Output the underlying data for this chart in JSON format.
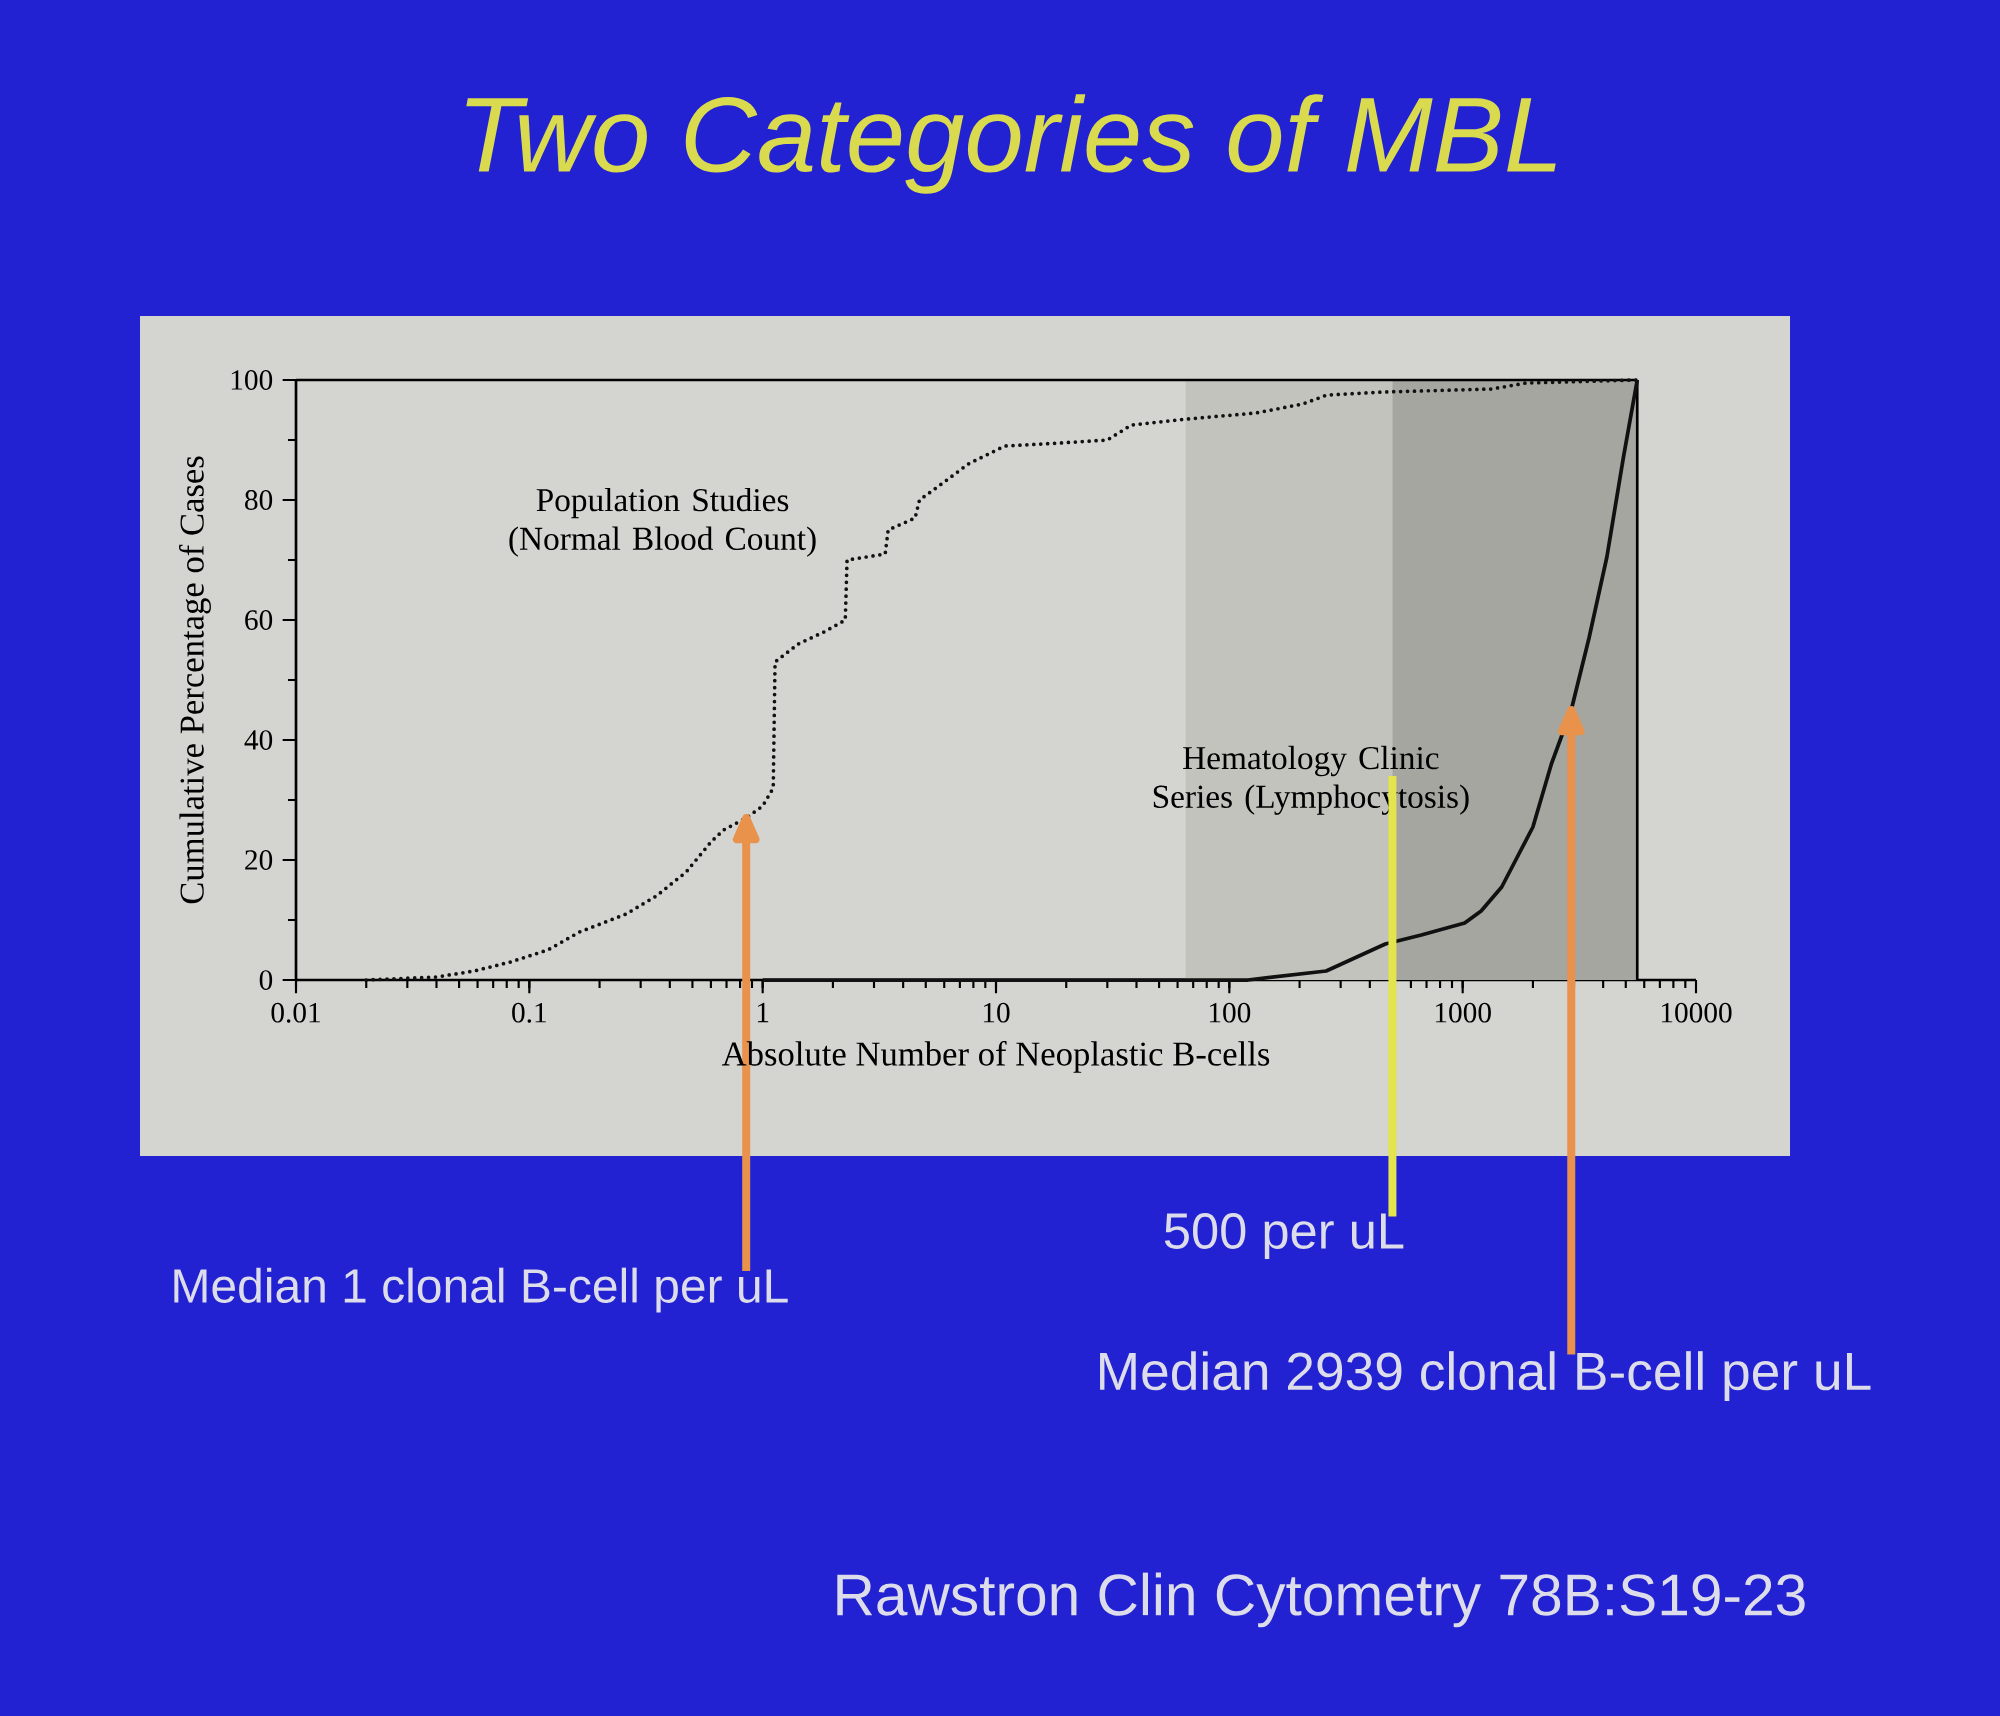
{
  "chart_data": {
    "type": "line",
    "title": "Two Categories of MBL",
    "xlabel": "Absolute Number of Neoplastic B-cells",
    "ylabel": "Cumulative Percentage of Cases",
    "log": "x",
    "xlim": [
      0.01,
      10000
    ],
    "xticks": [
      0.01,
      0.1,
      1,
      10,
      100,
      1000,
      10000
    ],
    "ylim": [
      0,
      100
    ],
    "yticks": [
      0,
      {
        "value": 10,
        "label": null
      },
      20,
      {
        "value": 30,
        "label": null
      },
      40,
      {
        "value": 50,
        "label": null
      },
      60,
      {
        "value": 70,
        "label": null
      },
      80,
      {
        "value": 90,
        "label": null
      },
      100
    ],
    "series": [
      {
        "name": "Population Studies (Normal Blood Count)",
        "color": "#111111",
        "line_style": "dotted",
        "x": [
          0.02,
          0.04,
          0.058,
          0.083,
          0.12,
          0.164,
          0.26,
          0.35,
          0.47,
          0.6,
          0.68,
          0.85,
          1,
          1.11,
          1.13,
          1.42,
          1.83,
          2.26,
          2.3,
          3.35,
          3.45,
          4.5,
          4.7,
          6,
          7.6,
          10.9,
          18.8,
          30,
          38,
          66,
          130,
          206,
          262,
          455,
          1330,
          1870,
          5600
        ],
        "values": [
          0,
          0.5,
          1.5,
          3,
          5,
          8,
          11,
          14,
          18,
          23,
          25,
          27,
          29,
          32,
          53,
          56,
          58,
          60,
          70,
          71,
          75,
          77,
          80,
          83,
          86,
          89,
          89.5,
          90,
          92.5,
          93.5,
          94.5,
          96,
          97.5,
          98,
          98.5,
          99.5,
          100
        ]
      },
      {
        "name": "Hematology Clinic Series (Lymphocytosis)",
        "color": "#111111",
        "line_style": "solid",
        "x": [
          1,
          120,
          260,
          466,
          665,
          1020,
          1200,
          1470,
          2000,
          2400,
          2920,
          3480,
          4150,
          4880,
          5600
        ],
        "values": [
          0,
          0,
          1.5,
          6,
          7.5,
          9.5,
          11.5,
          15.5,
          25.5,
          36,
          45,
          57,
          70.5,
          87,
          100
        ]
      }
    ],
    "bands": [
      {
        "axis": "x",
        "from": 65,
        "to": 500,
        "color": "#c3c3be"
      },
      {
        "axis": "x",
        "from": 500,
        "to": 5600,
        "color": "#a6a6a1"
      }
    ],
    "ref_lines": [
      {
        "axis": "x",
        "value": 5600,
        "color": "#000000"
      },
      {
        "axis": "y",
        "value": 100,
        "color": "#000000"
      }
    ],
    "annotations": [
      {
        "text": "Median 1 clonal B-cell per uL",
        "x": 0.85,
        "y": 27
      },
      {
        "text": "500 per uL",
        "x": 500,
        "y": 34
      },
      {
        "text": "Median 2939 clonal B-cell per uL",
        "x": 2920,
        "y": 45
      },
      "Rawstron Clin Cytometry 78B:S19-23"
    ]
  }
}
